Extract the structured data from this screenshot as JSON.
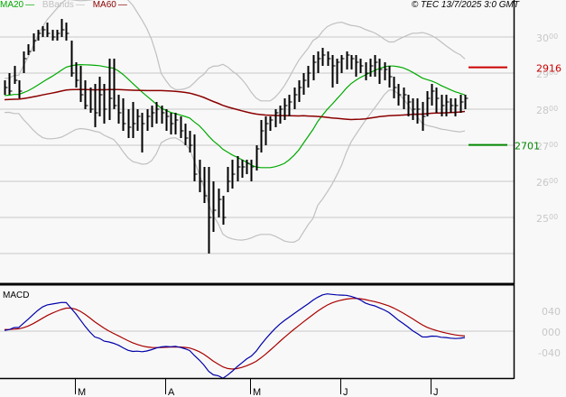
{
  "legend": {
    "ma20": {
      "label": "MA20",
      "color": "#00aa00"
    },
    "bbands": {
      "label": "BBands",
      "color": "#c0c0c0"
    },
    "ma60": {
      "label": "MA60",
      "color": "#8b0000"
    }
  },
  "copyright": "© TEC 13/7/2025 3:0 GMT",
  "macd_title": "MACD",
  "levels": {
    "resistance": {
      "value": "2916",
      "color": "#cc0000"
    },
    "support": {
      "value": "2701",
      "color": "#008800"
    }
  },
  "chart_data": [
    {
      "type": "ohlc",
      "title": "Price",
      "y_ticks": [
        "3000",
        "2900",
        "2800",
        "2700",
        "2600",
        "2500"
      ],
      "ylim": [
        2370,
        3050
      ],
      "x_ticks": [
        "M",
        "A",
        "M",
        "J",
        "J"
      ],
      "indicators": [
        "MA20",
        "BBands",
        "MA60"
      ],
      "levels": [
        {
          "name": "resistance",
          "value": 2916
        },
        {
          "name": "support",
          "value": 2701
        }
      ],
      "bars_high_low_close": [
        [
          2880,
          2840,
          2860
        ],
        [
          2900,
          2840,
          2850
        ],
        [
          2920,
          2870,
          2880
        ],
        [
          2880,
          2830,
          2850
        ],
        [
          2960,
          2900,
          2940
        ],
        [
          2980,
          2950,
          2960
        ],
        [
          3010,
          2960,
          2990
        ],
        [
          3020,
          2990,
          3010
        ],
        [
          3030,
          3000,
          3020
        ],
        [
          3040,
          3000,
          3010
        ],
        [
          3020,
          2990,
          3000
        ],
        [
          3020,
          2990,
          3010
        ],
        [
          3050,
          3000,
          3020
        ],
        [
          3040,
          2990,
          3010
        ],
        [
          2990,
          2890,
          2900
        ],
        [
          2930,
          2860,
          2880
        ],
        [
          2920,
          2820,
          2840
        ],
        [
          2880,
          2800,
          2810
        ],
        [
          2860,
          2790,
          2800
        ],
        [
          2870,
          2750,
          2790
        ],
        [
          2890,
          2780,
          2840
        ],
        [
          2870,
          2760,
          2800
        ],
        [
          2940,
          2770,
          2830
        ],
        [
          2940,
          2800,
          2810
        ],
        [
          2840,
          2760,
          2790
        ],
        [
          2830,
          2740,
          2760
        ],
        [
          2800,
          2720,
          2750
        ],
        [
          2820,
          2720,
          2760
        ],
        [
          2800,
          2740,
          2780
        ],
        [
          2790,
          2680,
          2760
        ],
        [
          2800,
          2740,
          2780
        ],
        [
          2810,
          2750,
          2790
        ],
        [
          2820,
          2760,
          2800
        ],
        [
          2810,
          2760,
          2790
        ],
        [
          2800,
          2740,
          2780
        ],
        [
          2790,
          2730,
          2760
        ],
        [
          2790,
          2730,
          2770
        ],
        [
          2780,
          2720,
          2740
        ],
        [
          2760,
          2700,
          2720
        ],
        [
          2740,
          2680,
          2700
        ],
        [
          2730,
          2600,
          2620
        ],
        [
          2660,
          2570,
          2600
        ],
        [
          2640,
          2540,
          2560
        ],
        [
          2640,
          2400,
          2500
        ],
        [
          2600,
          2460,
          2520
        ],
        [
          2580,
          2500,
          2550
        ],
        [
          2560,
          2480,
          2500
        ],
        [
          2640,
          2570,
          2600
        ],
        [
          2660,
          2580,
          2620
        ],
        [
          2670,
          2600,
          2640
        ],
        [
          2660,
          2610,
          2640
        ],
        [
          2660,
          2620,
          2650
        ],
        [
          2660,
          2600,
          2640
        ],
        [
          2700,
          2630,
          2690
        ],
        [
          2770,
          2680,
          2740
        ],
        [
          2780,
          2700,
          2760
        ],
        [
          2780,
          2740,
          2770
        ],
        [
          2800,
          2750,
          2790
        ],
        [
          2810,
          2760,
          2800
        ],
        [
          2830,
          2770,
          2810
        ],
        [
          2840,
          2780,
          2820
        ],
        [
          2860,
          2800,
          2840
        ],
        [
          2880,
          2820,
          2860
        ],
        [
          2900,
          2840,
          2880
        ],
        [
          2920,
          2860,
          2900
        ],
        [
          2950,
          2880,
          2930
        ],
        [
          2960,
          2900,
          2940
        ],
        [
          2970,
          2920,
          2950
        ],
        [
          2960,
          2920,
          2940
        ],
        [
          2950,
          2860,
          2920
        ],
        [
          2940,
          2870,
          2930
        ],
        [
          2950,
          2900,
          2940
        ],
        [
          2960,
          2910,
          2950
        ],
        [
          2950,
          2910,
          2940
        ],
        [
          2950,
          2890,
          2930
        ],
        [
          2940,
          2900,
          2920
        ],
        [
          2930,
          2880,
          2900
        ],
        [
          2940,
          2890,
          2920
        ],
        [
          2950,
          2890,
          2930
        ],
        [
          2940,
          2870,
          2910
        ],
        [
          2930,
          2880,
          2910
        ],
        [
          2920,
          2860,
          2890
        ],
        [
          2890,
          2830,
          2860
        ],
        [
          2870,
          2810,
          2840
        ],
        [
          2860,
          2800,
          2840
        ],
        [
          2840,
          2780,
          2820
        ],
        [
          2830,
          2770,
          2800
        ],
        [
          2830,
          2760,
          2800
        ],
        [
          2820,
          2740,
          2780
        ],
        [
          2850,
          2780,
          2830
        ],
        [
          2870,
          2810,
          2850
        ],
        [
          2860,
          2790,
          2830
        ],
        [
          2840,
          2780,
          2810
        ],
        [
          2840,
          2780,
          2820
        ],
        [
          2830,
          2790,
          2810
        ],
        [
          2830,
          2780,
          2810
        ],
        [
          2840,
          2790,
          2820
        ],
        [
          2840,
          2800,
          2830
        ]
      ]
    },
    {
      "type": "line",
      "title": "MACD",
      "y_ticks": [
        "040",
        "000",
        "-040"
      ],
      "ylim": [
        -100,
        100
      ],
      "series": [
        {
          "name": "MACD",
          "color": "#0000aa"
        },
        {
          "name": "Signal",
          "color": "#aa0000"
        }
      ]
    }
  ]
}
